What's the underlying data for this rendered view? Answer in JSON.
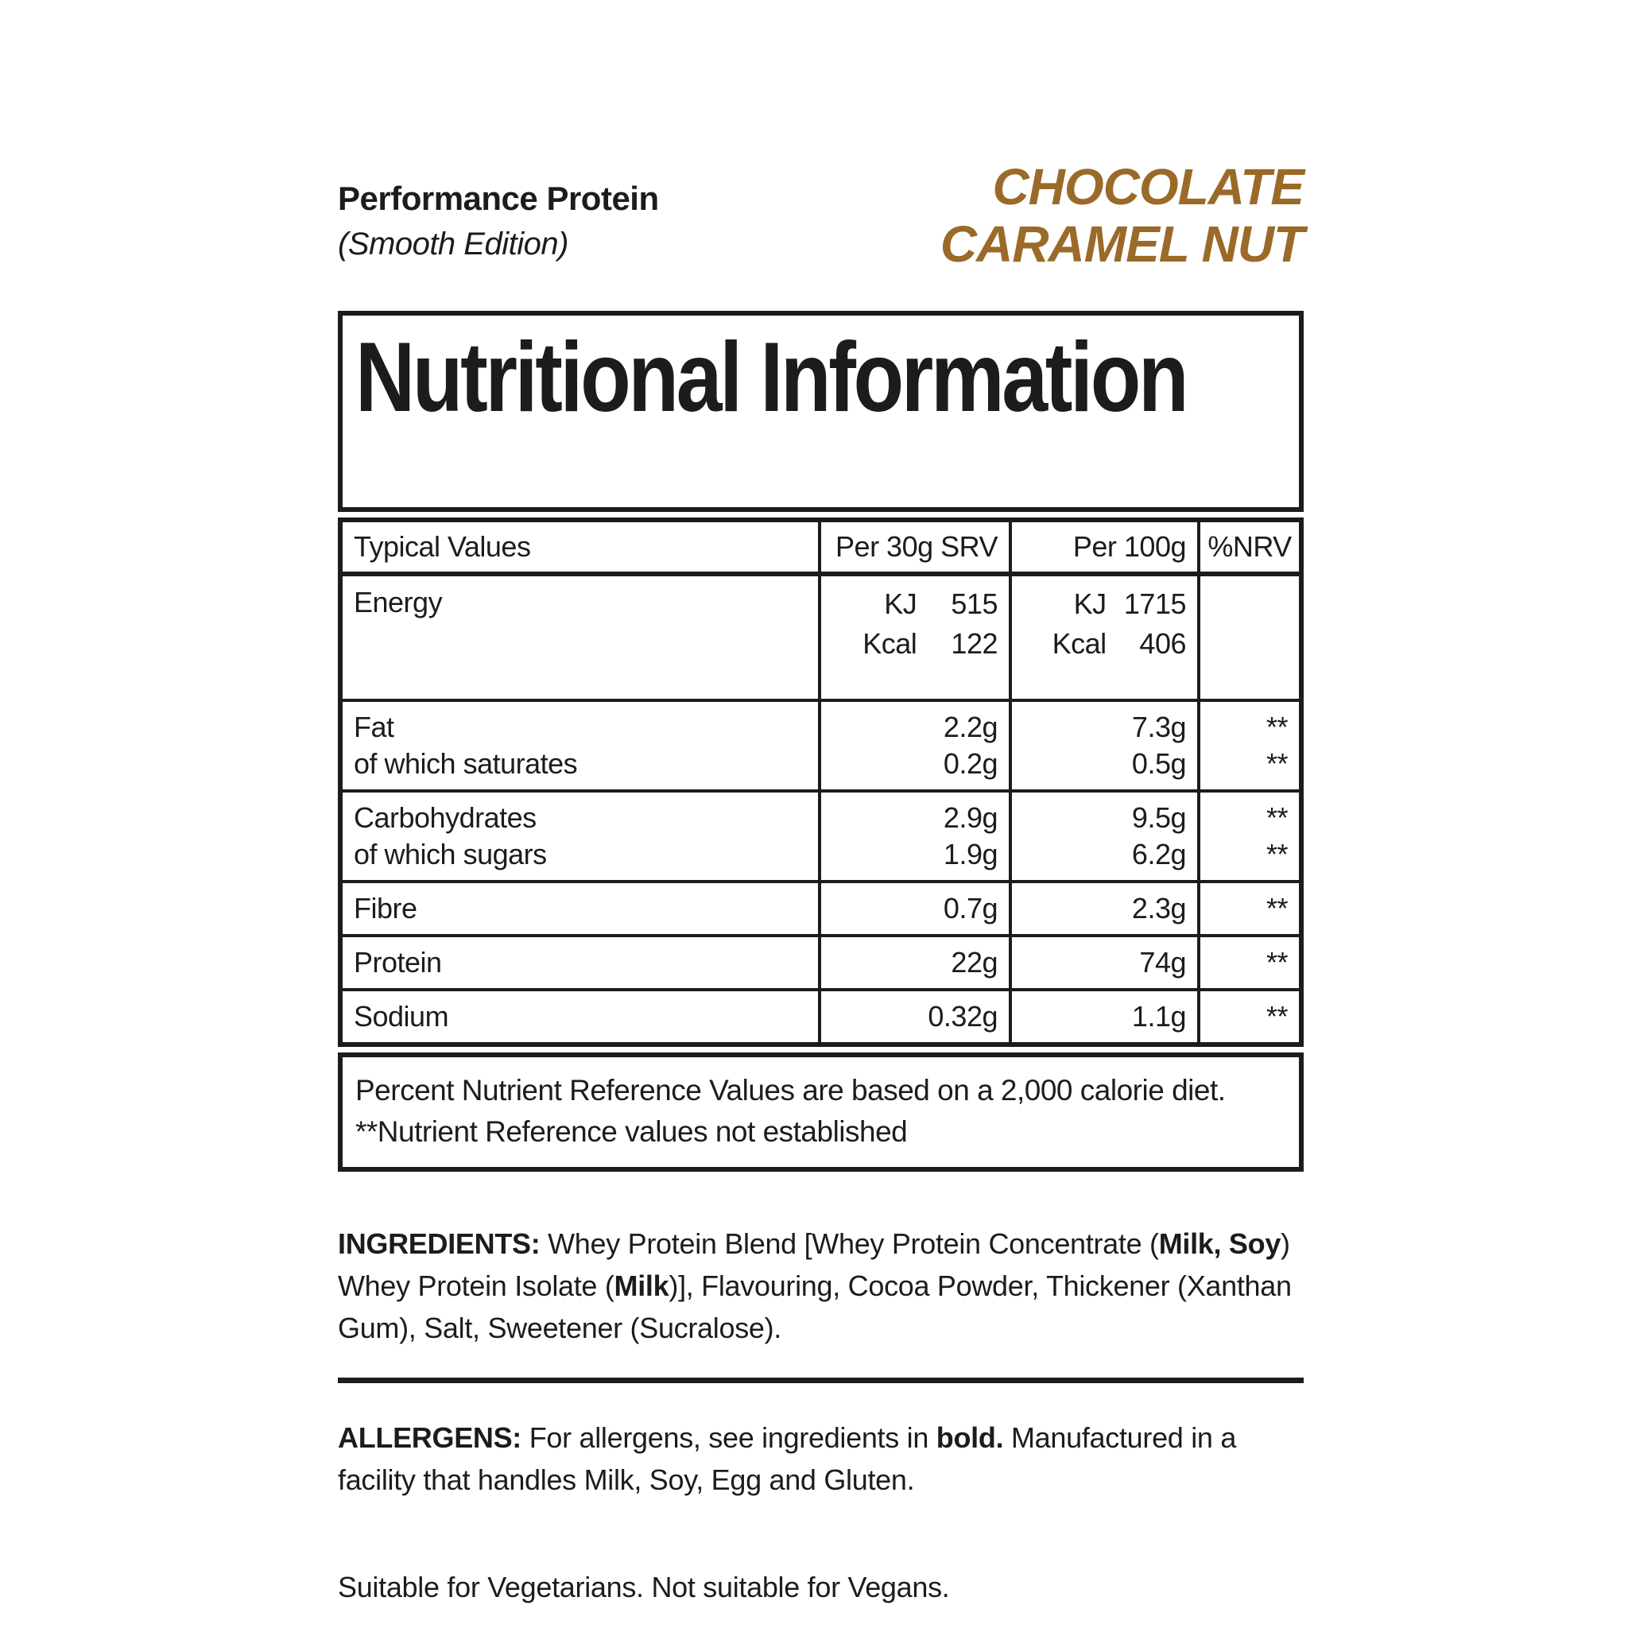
{
  "colors": {
    "accent_brown": "#9a6a28",
    "text": "#1c1c1c"
  },
  "header": {
    "product_name": "Performance Protein",
    "edition": "(Smooth Edition)",
    "flavor_line1": "CHOCOLATE",
    "flavor_line2": "CARAMEL NUT"
  },
  "table": {
    "title": "Nutritional Information",
    "columns": [
      "Typical Values",
      "Per 30g SRV",
      "Per 100g",
      "%NRV"
    ],
    "energy": {
      "label": "Energy",
      "srv": [
        {
          "unit": "KJ",
          "value": "515"
        },
        {
          "unit": "Kcal",
          "value": "122"
        }
      ],
      "per100": [
        {
          "unit": "KJ",
          "value": "1715"
        },
        {
          "unit": "Kcal",
          "value": "406"
        }
      ],
      "nrv": ""
    },
    "rows": [
      {
        "labels": [
          "Fat",
          "of which saturates"
        ],
        "srv": [
          "2.2g",
          "0.2g"
        ],
        "per100": [
          "7.3g",
          "0.5g"
        ],
        "nrv": [
          "**",
          "**"
        ]
      },
      {
        "labels": [
          "Carbohydrates",
          "of which sugars"
        ],
        "srv": [
          "2.9g",
          "1.9g"
        ],
        "per100": [
          "9.5g",
          "6.2g"
        ],
        "nrv": [
          "**",
          "**"
        ]
      },
      {
        "labels": [
          "Fibre"
        ],
        "srv": [
          "0.7g"
        ],
        "per100": [
          "2.3g"
        ],
        "nrv": [
          "**"
        ]
      },
      {
        "labels": [
          "Protein"
        ],
        "srv": [
          "22g"
        ],
        "per100": [
          "74g"
        ],
        "nrv": [
          "**"
        ]
      },
      {
        "labels": [
          "Sodium"
        ],
        "srv": [
          "0.32g"
        ],
        "per100": [
          "1.1g"
        ],
        "nrv": [
          "**"
        ]
      }
    ],
    "footnotes": [
      "Percent Nutrient Reference Values are based on a 2,000 calorie diet.",
      "**Nutrient Reference values not established"
    ]
  },
  "ingredients": {
    "segments": [
      {
        "text": "INGREDIENTS: "
      },
      {
        "text": "Whey Protein Blend [Whey Protein Concentrate ("
      },
      {
        "text": "Milk, Soy"
      },
      {
        "text": ") Whey Protein Isolate ("
      },
      {
        "text": "Milk"
      },
      {
        "text": ")], Flavouring, Cocoa Powder, Thickener (Xanthan Gum), Salt, Sweetener (Sucralose)."
      }
    ]
  },
  "allergens": {
    "segments": [
      {
        "text": "ALLERGENS: "
      },
      {
        "text": "For allergens, see ingredients in "
      },
      {
        "text": "bold."
      },
      {
        "text": " Manufactured in a facility that handles Milk, Soy, Egg and Gluten."
      }
    ]
  },
  "suitability": "Suitable for Vegetarians. Not suitable for Vegans."
}
